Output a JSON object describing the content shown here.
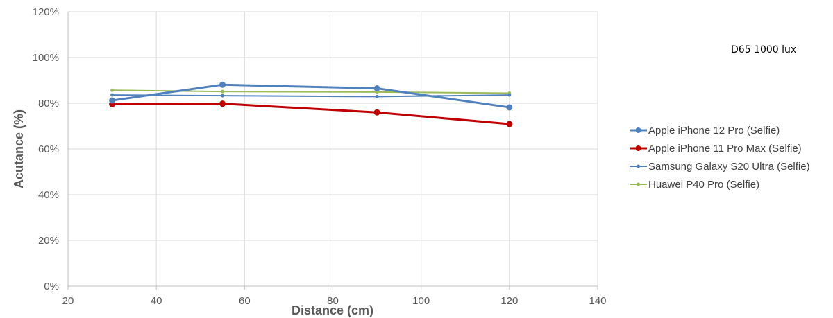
{
  "chart_data": {
    "type": "line",
    "title": "",
    "annotation": "D65 1000 lux",
    "xlabel": "Distance (cm)",
    "ylabel": "Acutance (%)",
    "xlim": [
      20,
      140
    ],
    "ylim": [
      0,
      120
    ],
    "xticks": [
      20,
      40,
      60,
      80,
      100,
      120,
      140
    ],
    "yticks": [
      0,
      20,
      40,
      60,
      80,
      100,
      120
    ],
    "xtick_labels": [
      "20",
      "40",
      "60",
      "80",
      "100",
      "120",
      "140"
    ],
    "ytick_labels": [
      "0%",
      "20%",
      "40%",
      "60%",
      "80%",
      "100%",
      "120%"
    ],
    "grid": true,
    "legend_position": "right",
    "series": [
      {
        "name": "Apple iPhone 12 Pro (Selfie)",
        "color": "#4f81bd",
        "marker": "large",
        "x": [
          30,
          55,
          90,
          120
        ],
        "y": [
          81.2,
          88.1,
          86.5,
          78.2
        ]
      },
      {
        "name": "Apple iPhone 11 Pro Max (Selfie)",
        "color": "#c00000",
        "marker": "large",
        "x": [
          30,
          55,
          90,
          120
        ],
        "y": [
          79.6,
          79.8,
          76.0,
          70.9
        ]
      },
      {
        "name": "Samsung Galaxy S20 Ultra (Selfie)",
        "color": "#4f81bd",
        "marker": "small",
        "x": [
          30,
          55,
          90,
          120
        ],
        "y": [
          83.6,
          83.3,
          82.9,
          83.6
        ]
      },
      {
        "name": "Huawei P40 Pro (Selfie)",
        "color": "#9bbb59",
        "marker": "small",
        "x": [
          30,
          55,
          90,
          120
        ],
        "y": [
          85.7,
          85.1,
          84.9,
          84.4
        ]
      }
    ]
  }
}
